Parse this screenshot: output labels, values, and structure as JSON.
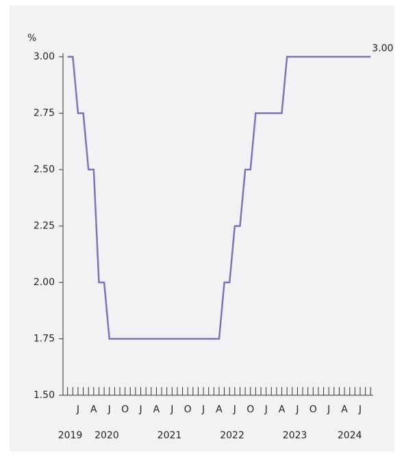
{
  "chart_data": {
    "type": "line",
    "y_unit": "%",
    "x": [
      "2019-11",
      "2019-12",
      "2020-01",
      "2020-02",
      "2020-03",
      "2020-04",
      "2020-05",
      "2020-06",
      "2020-07",
      "2020-08",
      "2020-09",
      "2020-10",
      "2020-11",
      "2020-12",
      "2021-01",
      "2021-02",
      "2021-03",
      "2021-04",
      "2021-05",
      "2021-06",
      "2021-07",
      "2021-08",
      "2021-09",
      "2021-10",
      "2021-11",
      "2021-12",
      "2022-01",
      "2022-02",
      "2022-03",
      "2022-04",
      "2022-05",
      "2022-06",
      "2022-07",
      "2022-08",
      "2022-09",
      "2022-10",
      "2022-11",
      "2022-12",
      "2023-01",
      "2023-02",
      "2023-03",
      "2023-04",
      "2023-05",
      "2023-06",
      "2023-07",
      "2023-08",
      "2023-09",
      "2023-10",
      "2023-11",
      "2023-12",
      "2024-01",
      "2024-02",
      "2024-03",
      "2024-04",
      "2024-05",
      "2024-06",
      "2024-07",
      "2024-08",
      "2024-09"
    ],
    "series": [
      {
        "color": "#7b74b8",
        "values": [
          3,
          3,
          2.75,
          2.75,
          2.5,
          2.5,
          2,
          2,
          1.75,
          1.75,
          1.75,
          1.75,
          1.75,
          1.75,
          1.75,
          1.75,
          1.75,
          1.75,
          1.75,
          1.75,
          1.75,
          1.75,
          1.75,
          1.75,
          1.75,
          1.75,
          1.75,
          1.75,
          1.75,
          1.75,
          2,
          2,
          2.25,
          2.25,
          2.5,
          2.5,
          2.75,
          2.75,
          2.75,
          2.75,
          2.75,
          2.75,
          3,
          3,
          3,
          3,
          3,
          3,
          3,
          3,
          3,
          3,
          3,
          3,
          3,
          3,
          3,
          3,
          3
        ]
      }
    ],
    "last_label": "3.00",
    "ylim": [
      1.5,
      3
    ],
    "yticks": [
      {
        "value": 1.5,
        "label": "1.50"
      },
      {
        "value": 1.75,
        "label": "1.75"
      },
      {
        "value": 2,
        "label": "2.00"
      },
      {
        "value": 2.25,
        "label": "2.25"
      },
      {
        "value": 2.5,
        "label": "2.50"
      },
      {
        "value": 2.75,
        "label": "2.75"
      },
      {
        "value": 3,
        "label": "3.00"
      }
    ],
    "quarter_labels": [
      {
        "value": "2020-01",
        "label": "J"
      },
      {
        "value": "2020-04",
        "label": "A"
      },
      {
        "value": "2020-07",
        "label": "J"
      },
      {
        "value": "2020-10",
        "label": "O"
      },
      {
        "value": "2021-01",
        "label": "J"
      },
      {
        "value": "2021-04",
        "label": "A"
      },
      {
        "value": "2021-07",
        "label": "J"
      },
      {
        "value": "2021-10",
        "label": "O"
      },
      {
        "value": "2022-01",
        "label": "J"
      },
      {
        "value": "2022-04",
        "label": "A"
      },
      {
        "value": "2022-07",
        "label": "J"
      },
      {
        "value": "2022-10",
        "label": "O"
      },
      {
        "value": "2023-01",
        "label": "J"
      },
      {
        "value": "2023-04",
        "label": "A"
      },
      {
        "value": "2023-07",
        "label": "J"
      },
      {
        "value": "2023-10",
        "label": "O"
      },
      {
        "value": "2024-01",
        "label": "J"
      },
      {
        "value": "2024-04",
        "label": "A"
      },
      {
        "value": "2024-07",
        "label": "J"
      }
    ],
    "year_labels": [
      "2019",
      "2020",
      "2021",
      "2022",
      "2023",
      "2024"
    ]
  }
}
